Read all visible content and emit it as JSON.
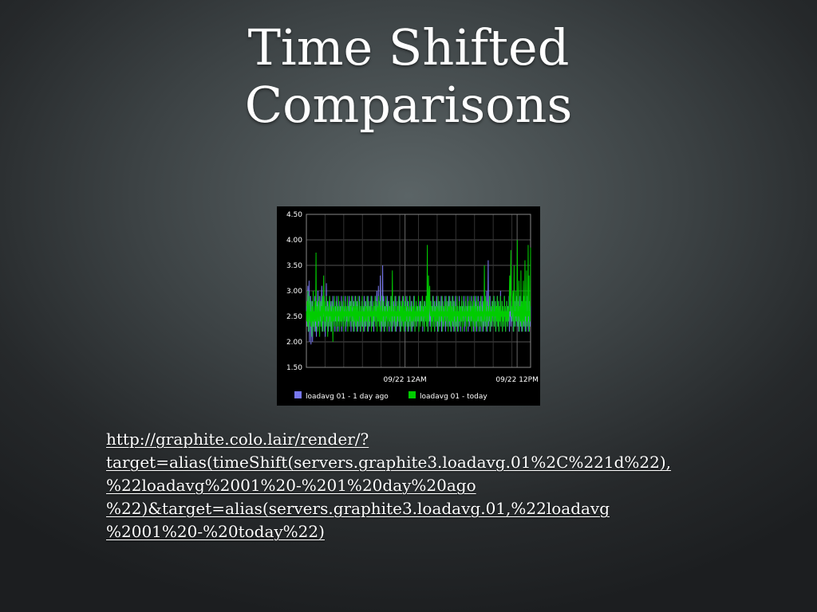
{
  "slide": {
    "title_line1": "Time Shifted",
    "title_line2": "Comparisons"
  },
  "url": {
    "lines": [
      "http://graphite.colo.lair/render/?",
      "target=alias(timeShift(servers.graphite3.loadavg.01%2C%221d%22),",
      "%22loadavg%2001%20-%201%20day%20ago",
      "%22)&target=alias(servers.graphite3.loadavg.01,%22loadavg",
      "%2001%20-%20today%22)"
    ]
  },
  "chart_data": {
    "type": "line",
    "title": "",
    "xlabel": "",
    "ylabel": "",
    "ylim": [
      1.5,
      4.5
    ],
    "yticks": [
      1.5,
      2.0,
      2.5,
      3.0,
      3.5,
      4.0,
      4.5
    ],
    "ytick_labels": [
      "1.50",
      "2.00",
      "2.50",
      "3.00",
      "3.50",
      "4.00",
      "4.50"
    ],
    "xticks": [
      {
        "label": "09/22 12AM",
        "fraction": 0.44
      },
      {
        "label": "09/22 12PM",
        "fraction": 0.94
      }
    ],
    "grid": true,
    "legend_position": "bottom",
    "background": "#000000",
    "series": [
      {
        "name": "loadavg 01 - 1 day ago",
        "color": "#7777ee",
        "values": [
          2.7,
          2.5,
          2.3,
          2.9,
          3.1,
          2.2,
          2.6,
          3.2,
          2.0,
          2.8,
          2.4,
          2.9,
          1.95,
          2.6,
          2.3,
          2.8,
          2.0,
          2.5,
          2.7,
          2.3,
          2.6,
          2.4,
          2.9,
          2.2,
          2.7,
          2.5,
          2.1,
          2.8,
          2.4,
          2.6,
          3.0,
          2.3,
          2.5,
          2.7,
          2.2,
          2.9,
          2.4,
          2.6,
          2.3,
          2.8,
          3.1,
          2.4,
          2.6,
          2.2,
          2.7,
          2.5,
          2.9,
          2.3,
          2.6,
          2.1,
          2.7,
          2.4,
          3.15,
          2.5,
          2.3,
          2.8,
          2.6,
          2.2,
          2.7,
          2.4,
          2.9,
          2.5,
          2.3,
          2.6,
          2.8,
          2.2,
          2.5,
          2.7,
          2.4,
          2.9,
          2.3,
          2.6,
          2.5,
          2.8,
          2.2,
          2.7,
          2.4,
          2.6,
          2.3,
          2.9,
          2.5,
          2.7,
          2.2,
          2.6,
          2.4,
          2.8,
          2.5,
          2.3,
          2.7,
          2.6,
          2.4,
          2.9,
          2.2,
          2.6,
          2.5,
          2.8,
          2.3,
          2.7,
          2.4,
          2.6,
          2.5,
          2.9,
          2.2,
          2.7,
          2.4,
          2.6,
          2.3,
          2.8,
          2.5,
          2.7,
          2.4,
          2.9,
          2.3,
          2.6,
          2.5,
          2.8,
          2.2,
          2.7,
          2.6,
          2.4,
          2.9,
          2.3,
          2.6,
          2.8,
          2.2,
          2.5,
          2.7,
          2.4,
          2.9,
          2.3,
          2.6,
          2.5,
          2.8,
          2.2,
          2.7,
          2.4,
          2.6,
          2.3,
          2.9,
          2.5,
          2.7,
          2.2,
          2.6,
          2.4,
          2.8,
          2.5,
          2.3,
          2.7,
          2.6,
          2.4,
          2.9,
          2.2,
          2.6,
          2.5,
          2.8,
          2.3,
          2.7,
          2.4,
          2.6,
          2.5,
          2.9,
          2.2,
          2.7,
          2.4,
          2.6,
          2.3,
          2.8,
          2.5,
          2.7,
          2.4,
          2.9,
          2.3,
          2.6,
          2.5,
          2.8,
          2.2,
          2.7,
          2.6,
          2.4,
          2.9,
          2.3,
          2.6,
          2.8,
          3.0,
          2.5,
          2.7,
          2.4,
          3.1,
          2.6,
          2.3,
          2.8,
          2.5,
          3.3,
          2.4,
          2.7,
          2.2,
          2.9,
          2.5,
          3.5,
          2.3,
          2.6,
          2.9,
          2.4,
          2.2,
          2.7,
          2.5,
          2.3,
          2.8,
          2.6,
          2.4,
          2.9,
          2.3,
          2.6,
          2.5,
          2.8,
          2.2,
          2.7,
          2.4,
          2.6,
          2.3,
          2.9,
          2.5,
          2.7,
          2.2,
          2.6,
          2.4,
          2.8,
          2.5,
          2.3,
          2.7,
          2.6,
          2.4,
          2.9,
          2.2,
          2.6,
          2.5,
          2.8,
          2.3,
          2.7,
          2.4,
          2.6,
          2.5,
          2.9,
          2.2,
          2.7,
          2.4,
          2.6,
          2.3,
          2.8,
          2.5,
          2.7,
          2.4,
          2.9,
          2.3,
          2.6,
          2.5,
          2.8,
          2.2,
          2.7,
          2.6,
          2.4,
          2.9,
          2.3,
          2.6,
          2.8,
          2.2,
          2.5,
          2.7,
          2.4,
          2.9,
          2.3,
          2.6,
          2.5,
          2.8,
          2.2,
          2.7,
          2.4,
          2.6,
          2.3,
          2.9,
          2.5,
          2.7,
          2.2,
          2.6,
          2.4,
          2.8,
          2.5,
          2.3,
          2.7,
          2.6,
          2.4,
          2.9,
          2.2,
          2.6,
          2.5,
          2.8,
          2.3,
          2.7,
          2.4,
          2.6,
          2.5,
          2.9,
          2.2,
          2.7,
          2.4,
          2.6,
          2.3,
          2.8,
          2.5,
          2.7,
          2.4,
          2.9,
          2.3,
          2.6,
          2.5,
          2.8,
          2.2,
          2.7,
          2.6,
          2.4,
          2.9,
          2.3,
          2.6,
          2.8,
          2.2,
          2.5,
          2.7,
          2.4,
          2.9,
          2.3,
          2.6,
          2.5,
          2.8,
          2.2,
          2.7,
          2.4,
          2.6,
          2.3,
          2.9,
          2.5,
          2.7,
          2.2,
          2.6,
          2.4,
          2.8,
          2.5,
          2.3,
          2.7,
          2.6,
          2.4,
          2.9,
          2.2,
          2.6,
          2.5,
          2.8,
          2.3,
          2.7,
          2.4,
          2.6,
          2.5,
          2.9,
          2.2,
          2.7,
          2.4,
          2.6,
          2.3,
          2.8,
          2.5,
          2.7,
          2.4,
          2.9,
          2.3,
          2.6,
          2.5,
          2.8,
          2.2,
          2.7,
          2.6,
          2.4,
          2.9,
          2.3,
          2.6,
          2.8,
          2.2,
          2.5,
          2.7,
          2.4,
          2.9,
          2.3,
          2.6,
          2.5,
          2.8,
          2.2,
          2.7,
          2.4,
          2.6,
          2.3,
          2.9,
          2.5,
          2.7,
          2.2,
          2.6,
          2.4,
          2.8,
          2.5,
          2.3,
          2.7,
          2.6,
          2.4,
          2.9,
          2.2,
          2.6,
          2.5,
          2.8,
          2.3,
          2.7,
          2.4,
          2.6,
          2.5,
          2.9,
          2.2,
          2.7,
          2.4,
          2.6,
          2.3,
          2.8,
          2.5,
          2.7,
          2.4,
          2.9,
          2.3,
          2.6,
          2.5,
          2.8,
          2.2,
          2.7,
          2.6,
          2.4,
          2.9,
          2.3,
          2.6,
          2.8,
          2.2,
          2.5,
          2.7,
          2.4,
          2.9,
          2.3,
          2.6,
          2.5,
          2.8,
          2.2,
          2.7,
          2.4,
          2.6,
          2.3,
          2.9,
          2.5,
          2.7,
          2.2,
          2.6,
          2.4,
          2.8,
          2.5,
          2.3,
          2.7,
          2.6,
          2.4,
          3.0,
          2.2,
          2.6,
          2.5,
          3.6,
          2.3,
          2.7,
          2.4,
          2.6,
          2.9,
          2.2,
          2.7,
          2.4,
          2.6,
          2.3,
          2.8,
          2.5,
          2.7,
          2.4,
          2.9,
          2.3,
          2.6,
          2.5,
          2.8,
          2.2,
          2.7,
          2.6,
          2.4,
          2.9,
          2.3,
          2.6,
          2.8,
          2.2,
          2.5,
          2.7,
          2.4,
          3.0,
          2.3,
          2.6,
          2.5,
          2.8,
          2.2,
          2.7,
          2.4,
          2.6,
          2.3,
          2.9,
          2.5,
          2.7,
          2.2,
          2.6,
          2.4,
          2.8,
          2.5,
          2.3,
          2.7,
          2.6,
          2.4,
          2.9,
          2.2,
          2.6,
          2.5,
          2.8,
          2.3,
          2.7,
          2.4,
          2.6,
          2.5,
          2.9,
          2.2,
          2.7,
          2.4,
          2.6,
          2.3,
          2.8,
          2.5,
          2.7,
          2.4,
          2.9,
          2.3,
          2.6,
          2.5,
          2.8,
          2.2,
          2.7,
          2.6,
          2.4,
          2.9,
          2.3,
          2.6,
          2.8,
          2.2,
          2.5,
          2.7,
          2.4,
          2.9,
          2.3,
          2.6,
          2.5,
          2.8,
          2.2,
          2.7,
          2.4,
          2.6,
          2.3,
          2.9,
          2.5,
          2.7,
          2.2,
          2.6,
          2.4,
          2.8,
          2.5,
          2.3,
          2.7
        ]
      },
      {
        "name": "loadavg 01 - today",
        "color": "#00cc00",
        "values": [
          2.6,
          2.4,
          2.8,
          2.3,
          3.0,
          2.5,
          2.2,
          2.7,
          2.9,
          2.4,
          2.6,
          2.3,
          2.8,
          2.5,
          2.1,
          2.7,
          2.4,
          3.0,
          2.3,
          2.6,
          2.2,
          2.8,
          2.5,
          2.4,
          3.75,
          2.3,
          2.7,
          2.5,
          2.2,
          2.8,
          2.6,
          2.4,
          2.9,
          2.1,
          2.6,
          2.5,
          2.8,
          2.3,
          2.7,
          2.2,
          2.9,
          2.4,
          2.6,
          3.3,
          2.5,
          2.2,
          2.8,
          2.4,
          2.6,
          2.3,
          2.9,
          2.5,
          2.7,
          2.1,
          2.6,
          2.4,
          2.8,
          2.3,
          2.9,
          2.5,
          2.7,
          2.2,
          2.6,
          2.4,
          2.8,
          2.5,
          2.0,
          2.7,
          2.6,
          2.4,
          2.9,
          2.3,
          2.6,
          2.5,
          2.8,
          2.2,
          2.7,
          2.4,
          2.6,
          2.3,
          2.9,
          2.5,
          2.7,
          2.2,
          2.6,
          2.4,
          2.8,
          2.5,
          2.3,
          2.7,
          2.6,
          2.4,
          2.9,
          2.2,
          2.6,
          2.5,
          2.8,
          2.3,
          2.7,
          2.4,
          2.6,
          2.5,
          2.9,
          2.2,
          2.7,
          2.4,
          2.6,
          2.3,
          2.8,
          2.5,
          2.7,
          2.4,
          2.9,
          2.3,
          2.6,
          2.5,
          2.8,
          2.2,
          2.7,
          2.6,
          2.4,
          2.9,
          2.3,
          2.6,
          2.8,
          2.2,
          2.5,
          2.7,
          2.4,
          2.9,
          2.3,
          2.6,
          2.5,
          2.8,
          2.2,
          2.7,
          2.4,
          2.6,
          2.3,
          2.9,
          2.5,
          2.7,
          2.2,
          2.6,
          2.4,
          2.8,
          2.5,
          2.3,
          2.7,
          2.6,
          2.4,
          2.9,
          2.2,
          2.6,
          2.5,
          2.8,
          2.3,
          2.7,
          2.4,
          2.6,
          2.5,
          2.9,
          2.2,
          2.7,
          2.4,
          2.6,
          2.3,
          2.8,
          2.5,
          2.7,
          2.4,
          2.9,
          2.3,
          2.6,
          2.5,
          2.8,
          2.2,
          2.7,
          2.6,
          2.4,
          2.9,
          2.3,
          2.6,
          2.8,
          2.2,
          2.5,
          2.7,
          2.4,
          2.9,
          2.3,
          2.6,
          2.5,
          2.8,
          2.2,
          2.7,
          2.4,
          2.6,
          2.3,
          2.9,
          2.5,
          2.7,
          2.2,
          2.6,
          2.4,
          2.8,
          2.5,
          2.3,
          2.7,
          2.6,
          2.4,
          2.9,
          2.2,
          2.6,
          2.5,
          3.4,
          2.3,
          2.7,
          2.4,
          2.6,
          2.5,
          2.9,
          2.2,
          2.7,
          2.4,
          2.6,
          2.3,
          2.8,
          2.5,
          2.7,
          2.4,
          2.9,
          2.3,
          2.6,
          2.5,
          2.8,
          2.2,
          2.7,
          2.6,
          2.4,
          2.9,
          2.3,
          2.6,
          2.8,
          2.2,
          2.5,
          2.7,
          2.4,
          2.9,
          2.3,
          2.6,
          2.5,
          2.8,
          2.2,
          2.7,
          2.4,
          2.6,
          2.3,
          2.9,
          2.5,
          2.7,
          2.2,
          2.6,
          2.4,
          2.8,
          2.5,
          2.3,
          2.7,
          2.6,
          2.4,
          2.9,
          2.2,
          2.6,
          2.5,
          2.8,
          2.3,
          2.7,
          2.4,
          2.6,
          2.5,
          2.9,
          2.2,
          2.7,
          2.4,
          2.6,
          2.3,
          2.8,
          2.5,
          2.7,
          2.4,
          2.9,
          2.3,
          2.6,
          2.5,
          2.8,
          2.2,
          2.7,
          2.6,
          2.4,
          2.9,
          2.3,
          2.6,
          3.9,
          2.2,
          2.5,
          3.3,
          2.4,
          2.9,
          3.1,
          2.6,
          2.5,
          2.8,
          2.2,
          2.7,
          2.4,
          2.6,
          2.3,
          2.9,
          2.5,
          2.7,
          2.2,
          2.6,
          2.4,
          2.8,
          2.5,
          2.3,
          2.7,
          2.6,
          2.4,
          2.9,
          2.2,
          2.6,
          2.5,
          2.8,
          2.3,
          2.7,
          2.4,
          2.6,
          2.5,
          2.9,
          2.2,
          2.7,
          2.4,
          2.6,
          2.3,
          2.8,
          2.5,
          2.7,
          2.4,
          2.9,
          2.3,
          2.6,
          2.5,
          2.8,
          2.2,
          2.7,
          2.6,
          2.4,
          2.9,
          2.3,
          2.6,
          2.8,
          2.2,
          2.5,
          2.7,
          2.4,
          2.9,
          2.3,
          2.6,
          2.5,
          2.8,
          2.2,
          2.7,
          2.4,
          2.6,
          2.3,
          2.9,
          2.5,
          2.7,
          2.2,
          2.6,
          2.4,
          2.8,
          2.5,
          2.3,
          2.7,
          2.6,
          2.4,
          2.9,
          2.2,
          2.6,
          2.5,
          2.8,
          2.3,
          2.7,
          2.4,
          2.6,
          2.5,
          2.9,
          2.2,
          2.7,
          2.4,
          2.6,
          2.3,
          2.8,
          2.5,
          2.7,
          2.4,
          2.9,
          2.3,
          2.6,
          2.5,
          2.8,
          2.2,
          2.7,
          2.6,
          2.4,
          2.9,
          2.3,
          2.6,
          2.8,
          2.2,
          2.5,
          2.7,
          2.4,
          2.9,
          2.3,
          2.6,
          2.5,
          2.8,
          2.2,
          2.7,
          2.4,
          2.6,
          2.3,
          2.9,
          2.5,
          2.7,
          2.2,
          2.6,
          2.4,
          2.8,
          2.5,
          2.3,
          3.5,
          2.6,
          2.4,
          2.9,
          2.2,
          2.6,
          2.5,
          2.8,
          2.3,
          2.7,
          2.4,
          2.6,
          2.5,
          2.9,
          2.2,
          2.7,
          2.4,
          2.6,
          2.3,
          2.8,
          2.5,
          2.7,
          2.4,
          2.9,
          2.3,
          2.6,
          2.5,
          2.8,
          2.2,
          2.7,
          2.6,
          2.4,
          2.9,
          2.3,
          2.6,
          2.8,
          2.2,
          2.5,
          2.7,
          2.4,
          2.9,
          2.3,
          2.6,
          2.5,
          2.8,
          2.2,
          2.7,
          2.4,
          2.6,
          2.3,
          2.9,
          2.5,
          2.7,
          2.2,
          2.6,
          2.4,
          2.8,
          2.5,
          2.3,
          2.7,
          2.6,
          2.4,
          2.9,
          3.3,
          2.6,
          3.1,
          3.8,
          2.5,
          2.7,
          2.4,
          2.6,
          3.0,
          2.9,
          2.2,
          3.5,
          2.4,
          2.6,
          2.3,
          3.0,
          2.5,
          2.7,
          2.4,
          4.0,
          2.3,
          2.6,
          2.5,
          3.2,
          2.2,
          2.7,
          2.6,
          2.4,
          3.4,
          2.3,
          2.6,
          2.8,
          2.2,
          2.5,
          3.2,
          2.4,
          2.9,
          2.3,
          3.6,
          2.5,
          2.8,
          2.2,
          3.4,
          2.4,
          2.6,
          2.3,
          3.9,
          2.5,
          3.3,
          2.2,
          2.6,
          2.4,
          3.85
        ]
      }
    ]
  }
}
